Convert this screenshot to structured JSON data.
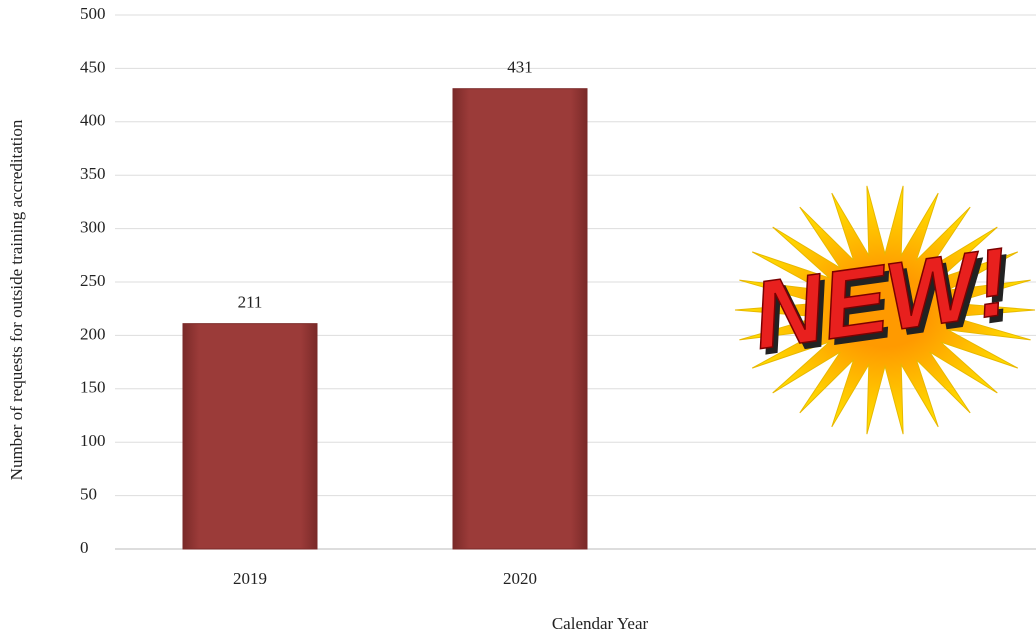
{
  "chart_data": {
    "type": "bar",
    "categories": [
      "2019",
      "2020"
    ],
    "values": [
      211,
      431
    ],
    "color": "#9b3b39",
    "ylim": [
      0,
      500
    ],
    "yticks": [
      0,
      50,
      100,
      150,
      200,
      250,
      300,
      350,
      400,
      450,
      500
    ],
    "grid": true,
    "x_label": "Calendar Year",
    "y_label": "Number of requests for outside training accreditation",
    "annotation": "NEW!"
  }
}
